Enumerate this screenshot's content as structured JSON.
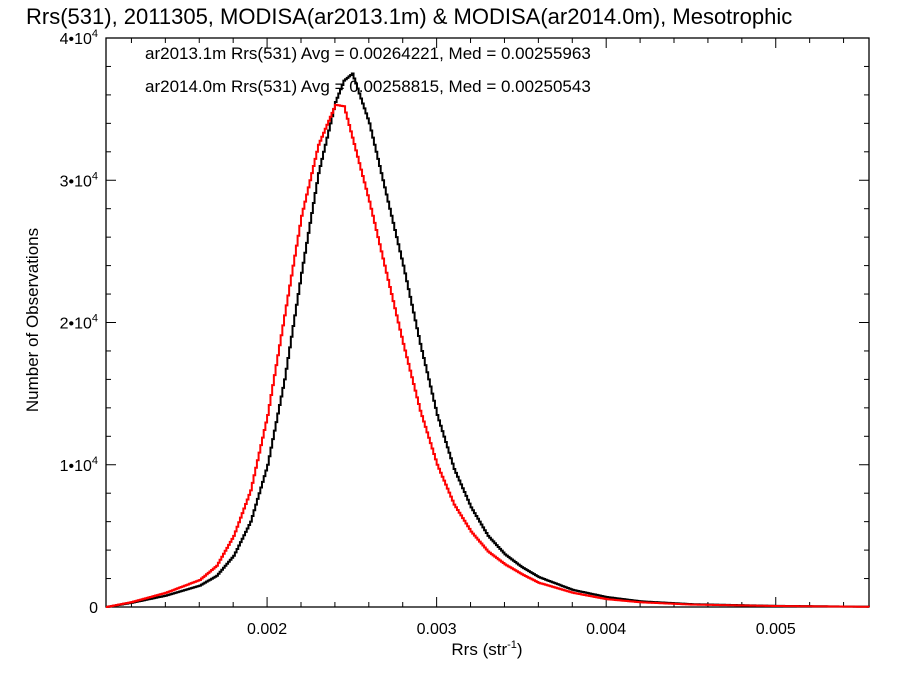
{
  "chart_data": {
    "type": "line",
    "title": "Rrs(531), 2011305, MODISA(ar2013.1m) & MODISA(ar2014.0m), Mesotrophic",
    "xlabel_main": "Rrs (str",
    "xlabel_sup": "-1",
    "xlabel_tail": ")",
    "ylabel": "Number of Observations",
    "xlim": [
      0.00105,
      0.00555
    ],
    "ylim": [
      0,
      40000
    ],
    "x_ticks": [
      {
        "value": 0.002,
        "label": "0.002"
      },
      {
        "value": 0.003,
        "label": "0.003"
      },
      {
        "value": 0.004,
        "label": "0.004"
      },
      {
        "value": 0.005,
        "label": "0.005"
      }
    ],
    "y_ticks": [
      {
        "value": 0,
        "base": "0",
        "exp": ""
      },
      {
        "value": 10000,
        "base": "1•10",
        "exp": "4"
      },
      {
        "value": 20000,
        "base": "2•10",
        "exp": "4"
      },
      {
        "value": 30000,
        "base": "3•10",
        "exp": "4"
      },
      {
        "value": 40000,
        "base": "4•10",
        "exp": "4"
      }
    ],
    "series": [
      {
        "name": "ar2013.1m Rrs(531) Avg = 0.00264221, Med = 0.00255963",
        "color": "#000000",
        "x": [
          0.00105,
          0.0012,
          0.0014,
          0.0016,
          0.0017,
          0.0018,
          0.0019,
          0.002,
          0.0021,
          0.0022,
          0.0023,
          0.0024,
          0.00245,
          0.0025,
          0.0026,
          0.0027,
          0.0028,
          0.0029,
          0.003,
          0.0031,
          0.0032,
          0.0033,
          0.0034,
          0.0035,
          0.0036,
          0.0038,
          0.004,
          0.0042,
          0.0045,
          0.005,
          0.00555
        ],
        "values": [
          0,
          300,
          800,
          1500,
          2200,
          3600,
          6000,
          10000,
          16000,
          23500,
          30500,
          35500,
          37000,
          37500,
          34000,
          29000,
          24000,
          18500,
          13500,
          9700,
          7000,
          5000,
          3700,
          2800,
          2100,
          1200,
          700,
          400,
          200,
          80,
          20
        ]
      },
      {
        "name": "ar2014.0m Rrs(531) Avg = 0.00258815, Med = 0.00250543",
        "color": "#ff0000",
        "x": [
          0.00105,
          0.0012,
          0.0014,
          0.0016,
          0.0017,
          0.0018,
          0.0019,
          0.002,
          0.0021,
          0.0022,
          0.0023,
          0.0024,
          0.00245,
          0.0025,
          0.0026,
          0.0027,
          0.0028,
          0.0029,
          0.003,
          0.0031,
          0.0032,
          0.0033,
          0.0034,
          0.0035,
          0.0036,
          0.0038,
          0.004,
          0.0042,
          0.0045,
          0.005,
          0.00555
        ],
        "values": [
          0,
          350,
          1000,
          1900,
          2900,
          5000,
          8200,
          13500,
          20500,
          27500,
          32500,
          35300,
          35200,
          33000,
          28500,
          23500,
          18500,
          13800,
          10000,
          7200,
          5300,
          3900,
          3000,
          2300,
          1700,
          1000,
          550,
          330,
          170,
          70,
          15
        ]
      }
    ],
    "grid": false,
    "legend": "top-left, inside plot"
  }
}
